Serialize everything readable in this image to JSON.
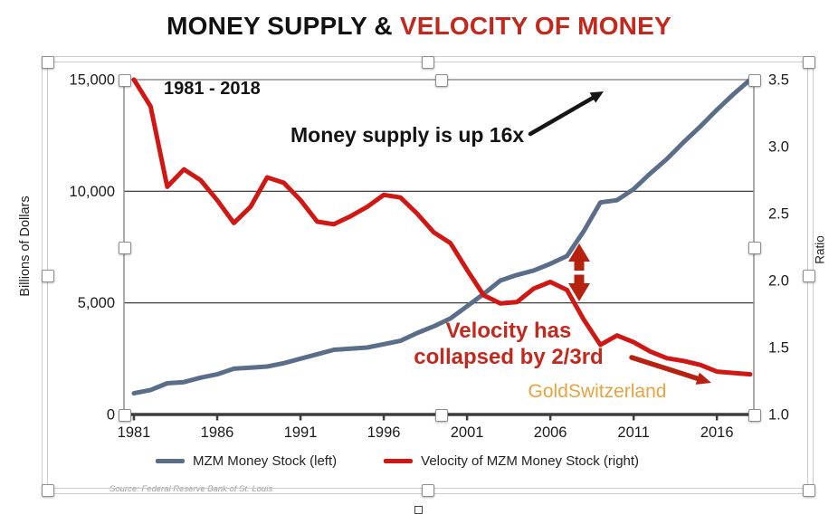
{
  "title": {
    "part1": "MONEY SUPPLY & ",
    "part2": "VELOCITY OF MONEY"
  },
  "annotations": {
    "period": "1981 - 2018",
    "money_supply_note": "Money supply is up 16x",
    "velocity_note_line1": "Velocity has",
    "velocity_note_line2": "collapsed by 2/3rd",
    "watermark": "GoldSwitzerland",
    "source": "Source: Federal Reserve Bank of St. Louis"
  },
  "legend": [
    {
      "label": "MZM Money Stock (left)",
      "color": "#5a6d89"
    },
    {
      "label": "Velocity of MZM Money Stock (right)",
      "color": "#d01713"
    }
  ],
  "colors": {
    "title_red": "#c3281d",
    "blue_line": "#5a6d89",
    "red_line": "#d01713",
    "note_red": "#c3281d",
    "arrow_dark_red": "#b6220f",
    "black_arrow": "#161616",
    "gold": "#e8a33e",
    "gridline": "#2a2a2a",
    "plot_border": "#8f8f8f",
    "axis_dark": "#3d3d3d",
    "tick_text": "#1b1b1b"
  },
  "chart_data": {
    "type": "line",
    "title": "MONEY SUPPLY & VELOCITY OF MONEY",
    "subtitle": "1981 - 2018",
    "legend_position": "bottom",
    "grid": "horizontal",
    "gridlines_left": [
      5000,
      10000
    ],
    "x_years": [
      1981,
      1982,
      1983,
      1984,
      1985,
      1986,
      1987,
      1988,
      1989,
      1990,
      1991,
      1992,
      1993,
      1994,
      1995,
      1996,
      1997,
      1998,
      1999,
      2000,
      2001,
      2002,
      2003,
      2004,
      2005,
      2006,
      2007,
      2008,
      2009,
      2010,
      2011,
      2012,
      2013,
      2014,
      2015,
      2016,
      2017,
      2018
    ],
    "x_ticks": [
      {
        "label": "1981",
        "value": 1981
      },
      {
        "label": "1986",
        "value": 1986
      },
      {
        "label": "1991",
        "value": 1991
      },
      {
        "label": "1996",
        "value": 1996
      },
      {
        "label": "2001",
        "value": 2001
      },
      {
        "label": "2006",
        "value": 2006
      },
      {
        "label": "2011",
        "value": 2011
      },
      {
        "label": "2016",
        "value": 2016
      }
    ],
    "left_axis": {
      "label": "Billions of Dollars",
      "range": [
        0,
        15000
      ],
      "ticks": [
        {
          "label": "15,000",
          "value": 15000
        },
        {
          "label": "10,000",
          "value": 10000
        },
        {
          "label": "5,000",
          "value": 5000
        },
        {
          "label": "0",
          "value": 0
        }
      ]
    },
    "right_axis": {
      "label": "Ratio",
      "range": [
        1.0,
        3.5
      ],
      "ticks": [
        {
          "label": "3.5",
          "value": 3.5
        },
        {
          "label": "3.0",
          "value": 3.0
        },
        {
          "label": "2.5",
          "value": 2.5
        },
        {
          "label": "2.0",
          "value": 2.0
        },
        {
          "label": "1.5",
          "value": 1.5
        },
        {
          "label": "1.0",
          "value": 1.0
        }
      ]
    },
    "series": [
      {
        "name": "MZM Money Stock (left)",
        "axis": "left",
        "color": "#5a6d89",
        "values": [
          950,
          1100,
          1400,
          1450,
          1650,
          1800,
          2050,
          2100,
          2150,
          2300,
          2500,
          2700,
          2900,
          2950,
          3000,
          3150,
          3300,
          3650,
          3950,
          4300,
          4850,
          5400,
          6000,
          6250,
          6450,
          6750,
          7100,
          8200,
          9500,
          9600,
          10100,
          10800,
          11450,
          12200,
          12900,
          13650,
          14350,
          15000
        ]
      },
      {
        "name": "Velocity of MZM Money Stock (right)",
        "axis": "right",
        "color": "#d01713",
        "values": [
          3.5,
          3.3,
          2.7,
          2.83,
          2.75,
          2.6,
          2.43,
          2.55,
          2.77,
          2.73,
          2.6,
          2.44,
          2.42,
          2.48,
          2.55,
          2.64,
          2.62,
          2.5,
          2.36,
          2.28,
          2.08,
          1.89,
          1.83,
          1.84,
          1.94,
          1.99,
          1.93,
          1.71,
          1.52,
          1.59,
          1.54,
          1.47,
          1.42,
          1.4,
          1.37,
          1.32,
          1.31,
          1.3
        ]
      }
    ]
  }
}
